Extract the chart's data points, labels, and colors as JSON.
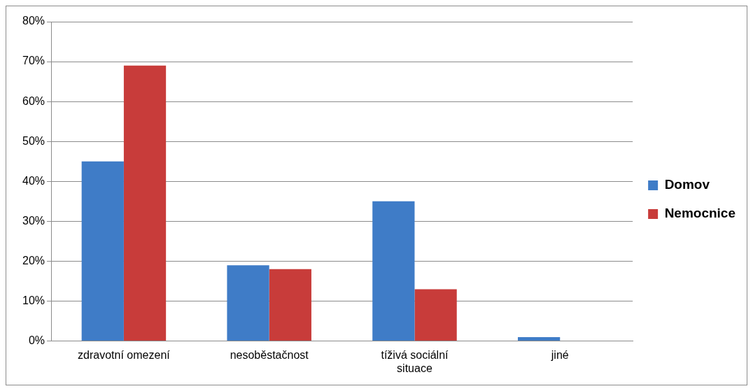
{
  "chart_data": {
    "type": "bar",
    "categories": [
      "zdravotní omezení",
      "nesoběstačnost",
      "tíživá sociální situace",
      "jiné"
    ],
    "series": [
      {
        "name": "Domov",
        "color": "#3f7cc7",
        "values": [
          45,
          19,
          35,
          1
        ]
      },
      {
        "name": "Nemocnice",
        "color": "#c83c3a",
        "values": [
          69,
          18,
          13,
          0
        ]
      }
    ],
    "ylim": [
      0,
      80
    ],
    "yticks": [
      {
        "value": 0,
        "label": "0%"
      },
      {
        "value": 10,
        "label": "10%"
      },
      {
        "value": 20,
        "label": "20%"
      },
      {
        "value": 30,
        "label": "30%"
      },
      {
        "value": 40,
        "label": "40%"
      },
      {
        "value": 50,
        "label": "50%"
      },
      {
        "value": 60,
        "label": "60%"
      },
      {
        "value": 70,
        "label": "70%"
      },
      {
        "value": 80,
        "label": "80%"
      }
    ],
    "grid": "y",
    "legend": "right"
  }
}
